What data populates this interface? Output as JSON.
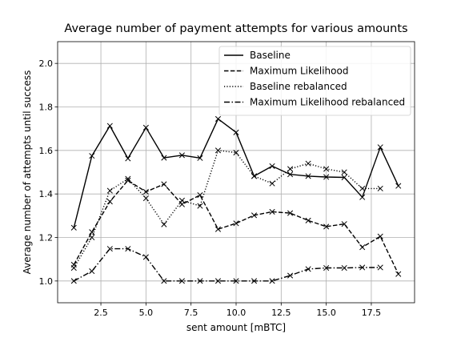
{
  "chart_data": {
    "type": "line",
    "title": "Average number of payment attempts for various amounts",
    "xlabel": "sent amount [mBTC]",
    "ylabel": "Average number of attempts until success",
    "xlim": [
      0.1,
      19.9
    ],
    "ylim": [
      0.9,
      2.1
    ],
    "xticks": [
      2.5,
      5.0,
      7.5,
      10.0,
      12.5,
      15.0,
      17.5
    ],
    "xtick_labels": [
      "2.5",
      "5.0",
      "7.5",
      "10.0",
      "12.5",
      "15.0",
      "17.5"
    ],
    "yticks": [
      1.0,
      1.2,
      1.4,
      1.6,
      1.8,
      2.0
    ],
    "ytick_labels": [
      "1.0",
      "1.2",
      "1.4",
      "1.6",
      "1.8",
      "2.0"
    ],
    "grid": true,
    "legend_position": "top-right",
    "marker": "x",
    "series": [
      {
        "name": "Baseline",
        "dash": "solid",
        "x": [
          1,
          2,
          3,
          4,
          5,
          6,
          7,
          8,
          9,
          10,
          11,
          12,
          13,
          14,
          15,
          16,
          17,
          18,
          19
        ],
        "y": [
          1.245,
          1.575,
          1.713,
          1.563,
          1.705,
          1.566,
          1.578,
          1.565,
          1.745,
          1.683,
          1.482,
          1.528,
          1.49,
          1.482,
          1.478,
          1.476,
          1.385,
          1.615,
          1.437
        ]
      },
      {
        "name": "Maximum Likelihood",
        "dash": "dashed",
        "x": [
          1,
          2,
          3,
          4,
          5,
          6,
          7,
          8,
          9,
          10,
          11,
          12,
          13,
          14,
          15,
          16,
          17,
          18,
          19
        ],
        "y": [
          1.075,
          1.225,
          1.365,
          1.462,
          1.41,
          1.445,
          1.352,
          1.395,
          1.238,
          1.265,
          1.302,
          1.318,
          1.312,
          1.278,
          1.25,
          1.262,
          1.155,
          1.205,
          1.032
        ]
      },
      {
        "name": "Baseline rebalanced",
        "dash": "dotted",
        "x": [
          1,
          2,
          3,
          4,
          5,
          6,
          7,
          8,
          9,
          10,
          11,
          12,
          13,
          14,
          15,
          16,
          17,
          18
        ],
        "y": [
          1.06,
          1.2,
          1.415,
          1.47,
          1.38,
          1.26,
          1.37,
          1.345,
          1.6,
          1.59,
          1.482,
          1.448,
          1.515,
          1.54,
          1.515,
          1.5,
          1.425,
          1.425
        ]
      },
      {
        "name": "Maximum Likelihood rebalanced",
        "dash": "dashdot",
        "x": [
          1,
          2,
          3,
          4,
          5,
          6,
          7,
          8,
          9,
          10,
          11,
          12,
          13,
          14,
          15,
          16,
          17,
          18
        ],
        "y": [
          1.0,
          1.045,
          1.148,
          1.148,
          1.11,
          1.0,
          1.0,
          1.0,
          1.0,
          1.0,
          1.0,
          1.0,
          1.025,
          1.055,
          1.06,
          1.06,
          1.062,
          1.062
        ]
      }
    ]
  }
}
